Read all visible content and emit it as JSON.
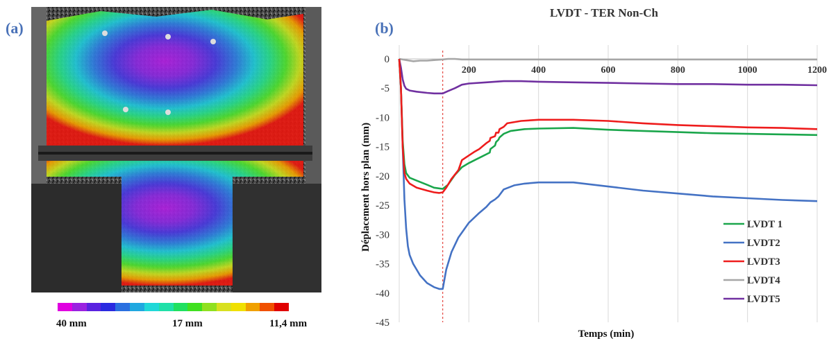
{
  "figure": {
    "panel_a_label": "(a)",
    "panel_b_label": "(b)",
    "colorbar": {
      "min_label": "40 mm",
      "mid_label": "17 mm",
      "max_label": "11,4 mm",
      "colors": [
        "#e000e0",
        "#9a22e0",
        "#5a22e0",
        "#2a2ae0",
        "#2a70e0",
        "#20a8e0",
        "#20d8d8",
        "#20e0a8",
        "#20e060",
        "#40e020",
        "#90e020",
        "#d8e020",
        "#f0e000",
        "#f0a000",
        "#f05000",
        "#e00000"
      ]
    }
  },
  "chart_data": {
    "type": "line",
    "title": "LVDT - TER Non-Ch",
    "xlabel": "Temps (min)",
    "ylabel": "Déplacement hors plan (mm)",
    "xlim": [
      0,
      1200
    ],
    "ylim": [
      -45,
      0
    ],
    "xticks": [
      "200",
      "400",
      "600",
      "800",
      "1000",
      "1200"
    ],
    "yticks": [
      "0",
      "-5",
      "-10",
      "-15",
      "-20",
      "-25",
      "-30",
      "-35",
      "-40",
      "-45"
    ],
    "grid": "vertical",
    "legend_position": "bottom-right",
    "marker_line_x": 125,
    "series": [
      {
        "name": "LVDT 1",
        "color": "#1aa64b",
        "x": [
          0,
          5,
          10,
          15,
          20,
          30,
          50,
          80,
          100,
          125,
          140,
          160,
          180,
          200,
          220,
          240,
          260,
          262,
          275,
          278,
          285,
          288,
          300,
          320,
          360,
          400,
          500,
          600,
          700,
          800,
          900,
          1000,
          1100,
          1200
        ],
        "y": [
          0,
          -5,
          -14,
          -18,
          -19.5,
          -20.3,
          -20.8,
          -21.5,
          -22,
          -22.2,
          -21.5,
          -19.8,
          -18.5,
          -17.8,
          -17.2,
          -16.6,
          -16,
          -15.4,
          -14.8,
          -14.2,
          -13.8,
          -13.4,
          -12.8,
          -12.3,
          -12,
          -11.9,
          -11.8,
          -12.1,
          -12.3,
          -12.5,
          -12.7,
          -12.8,
          -12.9,
          -13
        ]
      },
      {
        "name": "LVDT2",
        "color": "#4472c4",
        "x": [
          0,
          5,
          10,
          15,
          20,
          25,
          30,
          40,
          50,
          60,
          80,
          100,
          115,
          125,
          135,
          150,
          170,
          200,
          230,
          250,
          262,
          275,
          285,
          300,
          330,
          360,
          400,
          500,
          600,
          700,
          800,
          900,
          1000,
          1100,
          1200
        ],
        "y": [
          0,
          -5,
          -15,
          -24,
          -29,
          -32,
          -33.5,
          -35,
          -36,
          -37,
          -38.3,
          -39,
          -39.3,
          -39.3,
          -36,
          -33,
          -30.5,
          -28,
          -26.3,
          -25.3,
          -24.5,
          -24,
          -23.5,
          -22.3,
          -21.6,
          -21.3,
          -21.1,
          -21.1,
          -21.8,
          -22.5,
          -23,
          -23.5,
          -23.8,
          -24.1,
          -24.3
        ]
      },
      {
        "name": "LVDT3",
        "color": "#ee1c1c",
        "x": [
          0,
          5,
          10,
          15,
          20,
          30,
          50,
          80,
          100,
          115,
          125,
          135,
          150,
          170,
          180,
          190,
          200,
          215,
          230,
          240,
          250,
          260,
          262,
          275,
          278,
          285,
          288,
          300,
          310,
          350,
          400,
          500,
          600,
          700,
          800,
          900,
          1000,
          1100,
          1200
        ],
        "y": [
          0,
          -5,
          -15,
          -19.5,
          -20.5,
          -21.3,
          -22,
          -22.5,
          -22.8,
          -22.9,
          -22.8,
          -22,
          -20.5,
          -19,
          -17.3,
          -16.9,
          -16.5,
          -15.9,
          -15.4,
          -14.9,
          -14.4,
          -14,
          -13.5,
          -13.2,
          -12.6,
          -12.6,
          -12,
          -11.6,
          -11,
          -10.6,
          -10.4,
          -10.4,
          -10.6,
          -11,
          -11.3,
          -11.5,
          -11.7,
          -11.8,
          -12
        ]
      },
      {
        "name": "LVDT4",
        "color": "#a6a6a6",
        "x": [
          0,
          10,
          20,
          40,
          60,
          80,
          100,
          125,
          140,
          160,
          180,
          200,
          400,
          600,
          800,
          1000,
          1200
        ],
        "y": [
          0,
          -0.1,
          -0.2,
          -0.4,
          -0.3,
          -0.3,
          -0.2,
          -0.1,
          0,
          0,
          -0.1,
          -0.1,
          -0.1,
          -0.1,
          -0.1,
          -0.1,
          -0.1
        ]
      },
      {
        "name": "LVDT5",
        "color": "#7030a0",
        "x": [
          0,
          5,
          10,
          15,
          20,
          30,
          50,
          80,
          100,
          125,
          140,
          160,
          180,
          200,
          250,
          300,
          350,
          400,
          500,
          600,
          700,
          800,
          900,
          1000,
          1100,
          1200
        ],
        "y": [
          0,
          -1.5,
          -3.5,
          -4.6,
          -5.1,
          -5.4,
          -5.6,
          -5.8,
          -5.9,
          -5.9,
          -5.5,
          -5,
          -4.4,
          -4.2,
          -4,
          -3.8,
          -3.8,
          -3.9,
          -4,
          -4.1,
          -4.2,
          -4.3,
          -4.3,
          -4.4,
          -4.4,
          -4.5
        ]
      }
    ]
  }
}
